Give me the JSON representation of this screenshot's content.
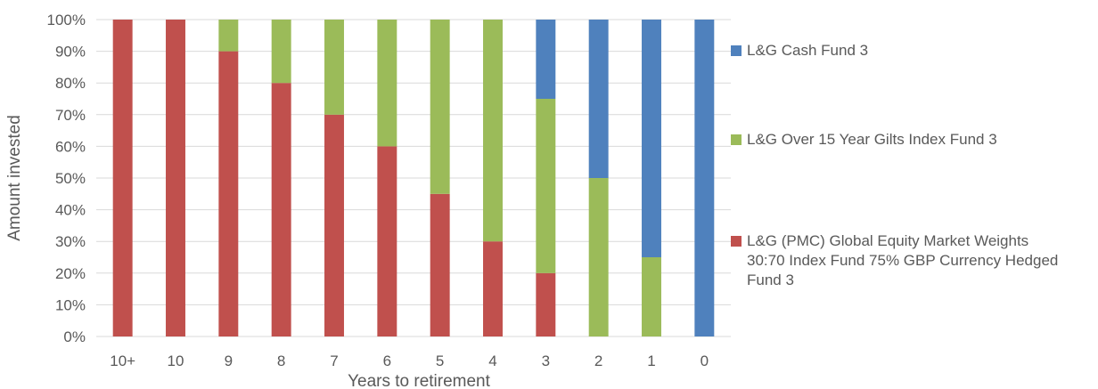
{
  "chart_data": {
    "type": "bar",
    "stacked": true,
    "percent": true,
    "categories": [
      "10+",
      "10",
      "9",
      "8",
      "7",
      "6",
      "5",
      "4",
      "3",
      "2",
      "1",
      "0"
    ],
    "series": [
      {
        "name": "L&G (PMC) Global Equity Market Weights 30:70 Index Fund 75% GBP Currency Hedged Fund 3",
        "color": "#c0504d",
        "values": [
          100,
          100,
          90,
          80,
          70,
          60,
          45,
          30,
          20,
          0,
          0,
          0
        ]
      },
      {
        "name": "L&G Over 15 Year Gilts Index Fund 3",
        "color": "#9bbb59",
        "values": [
          0,
          0,
          10,
          20,
          30,
          40,
          55,
          70,
          55,
          50,
          25,
          0
        ]
      },
      {
        "name": "L&G Cash Fund 3",
        "color": "#4f81bd",
        "values": [
          0,
          0,
          0,
          0,
          0,
          0,
          0,
          0,
          25,
          50,
          75,
          100
        ]
      }
    ],
    "y_ticks": [
      "0%",
      "10%",
      "20%",
      "30%",
      "40%",
      "50%",
      "60%",
      "70%",
      "80%",
      "90%",
      "100%"
    ],
    "xlabel": "Years to retirement",
    "ylabel": "Amount invested",
    "ylim": [
      0,
      100
    ],
    "grid": true,
    "legend_position": "right"
  },
  "legend": {
    "items": [
      {
        "label": "L&G Cash Fund 3",
        "color": "#4f81bd"
      },
      {
        "label": "L&G Over 15 Year Gilts Index Fund 3",
        "color": "#9bbb59"
      },
      {
        "label": "L&G (PMC) Global Equity Market Weights 30:70 Index Fund 75% GBP Currency Hedged Fund 3",
        "color": "#c0504d"
      }
    ]
  }
}
